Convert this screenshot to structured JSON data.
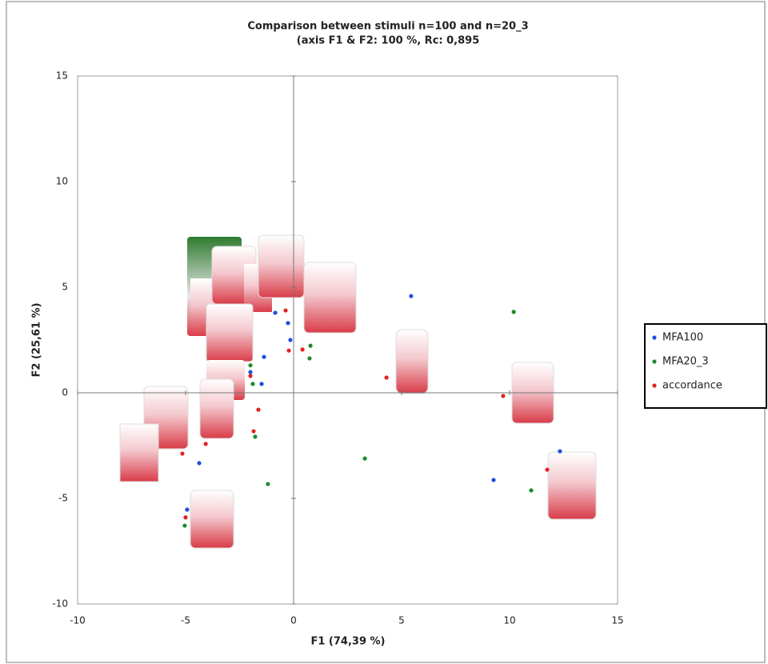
{
  "chart_data": {
    "type": "scatter",
    "title": "Comparison between stimuli n=100 and n=20_3",
    "subtitle": "(axis F1 & F2: 100 %, Rc: 0,895",
    "x_label": "F1 (74,39 %)",
    "y_label": "F2 (25,61 %)",
    "xlim": [
      -10,
      15
    ],
    "xticks": [
      -10,
      -5,
      0,
      5,
      10,
      15
    ],
    "ylim": [
      -10,
      15
    ],
    "yticks": [
      -10,
      -5,
      0,
      5,
      10,
      15
    ],
    "legend_position": "right",
    "series": [
      {
        "name": "MFA100",
        "color": "#1f4fe0",
        "x": [
          5.44,
          12.33,
          9.26,
          -4.37,
          -4.93,
          -1.48,
          -1.37,
          -0.26,
          -0.85,
          -2.0,
          -0.15
        ],
        "values": [
          4.58,
          -2.77,
          -4.13,
          -3.33,
          -5.53,
          0.42,
          1.7,
          3.3,
          3.79,
          0.98,
          2.5
        ]
      },
      {
        "name": "MFA20_3",
        "color": "#1e8a2e",
        "x": [
          10.19,
          11.0,
          3.3,
          -1.19,
          -5.04,
          0.78,
          0.74,
          -1.89,
          -1.78,
          -2.0
        ],
        "values": [
          3.83,
          -4.62,
          -3.11,
          -4.32,
          -6.29,
          2.23,
          1.63,
          0.42,
          -2.08,
          1.3
        ]
      },
      {
        "name": "accordance",
        "color": "#e32222",
        "x": [
          4.3,
          9.7,
          11.74,
          -5.15,
          -4.07,
          -5.0,
          -1.63,
          -1.85,
          -0.37,
          -0.22,
          0.41,
          -2.0
        ],
        "values": [
          0.72,
          -0.15,
          -3.64,
          -2.88,
          -2.42,
          -5.9,
          -0.8,
          -1.82,
          3.9,
          2.0,
          2.05,
          0.8
        ]
      }
    ]
  }
}
